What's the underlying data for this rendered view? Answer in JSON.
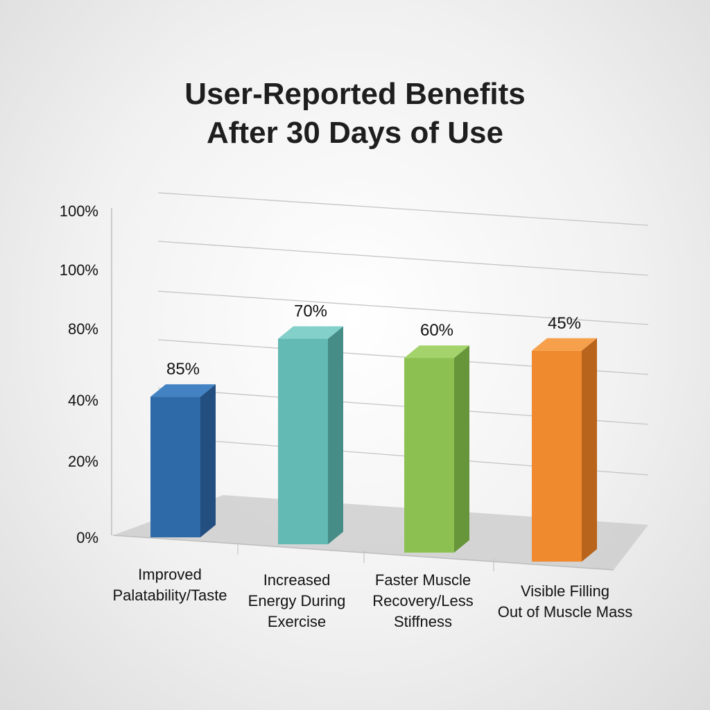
{
  "chart_data": {
    "type": "bar",
    "title_lines": [
      "User-Reported Benefits",
      "After 30 Days of Use"
    ],
    "y_tick_labels": [
      "100%",
      "100%",
      "80%",
      "40%",
      "20%",
      "0%"
    ],
    "categories": [
      [
        "Improved",
        "Palatability/Taste"
      ],
      [
        "Increased",
        "Energy During",
        "Exercise"
      ],
      [
        "Faster Muscle",
        "Recovery/Less",
        "Stiffness"
      ],
      [
        "Visible Filling",
        "Out of Muscle Mass"
      ]
    ],
    "value_labels": [
      "85%",
      "70%",
      "60%",
      "45%"
    ],
    "values": [
      85,
      70,
      60,
      45
    ],
    "bar_levels": [
      52,
      76,
      72,
      78
    ],
    "colors": [
      "#2f6aa8",
      "#63b9b3",
      "#8cc152",
      "#ef8a2e"
    ],
    "side_colors": [
      "#224e80",
      "#468d88",
      "#67963a",
      "#b9641c"
    ],
    "top_colors": [
      "#4383c4",
      "#82d0c9",
      "#a4d36b",
      "#f7a04c"
    ],
    "grid": true,
    "legend": "none"
  }
}
